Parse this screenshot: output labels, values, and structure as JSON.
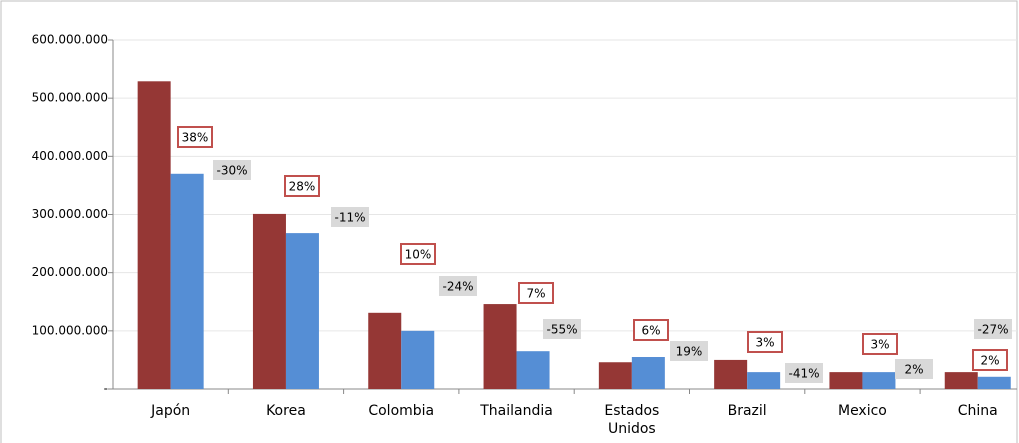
{
  "chart_data": {
    "type": "bar",
    "categories": [
      "Japón",
      "Korea",
      "Colombia",
      "Thailandia",
      "Estados Unidos",
      "Brazil",
      "Mexico",
      "China"
    ],
    "series": [
      {
        "color": "#953735",
        "values": [
          529000000,
          301000000,
          131000000,
          146000000,
          46000000,
          50000000,
          29000000,
          29000000
        ]
      },
      {
        "color": "#558ed5",
        "values": [
          370000000,
          268000000,
          100000000,
          65000000,
          55000000,
          29000000,
          29000000,
          21000000
        ]
      }
    ],
    "share_labels": [
      "38%",
      "28%",
      "10%",
      "7%",
      "6%",
      "3%",
      "3%",
      "2%"
    ],
    "change_labels": [
      "-30%",
      "-11%",
      "-24%",
      "-55%",
      "19%",
      "-41%",
      "2%",
      "-27%"
    ],
    "ylim": [
      0,
      600000000
    ],
    "yticks": [
      {
        "value": 0,
        "label": "-"
      },
      {
        "value": 100000000,
        "label": "100.000.000"
      },
      {
        "value": 200000000,
        "label": "200.000.000"
      },
      {
        "value": 300000000,
        "label": "300.000.000"
      },
      {
        "value": 400000000,
        "label": "400.000.000"
      },
      {
        "value": 500000000,
        "label": "500.000.000"
      },
      {
        "value": 600000000,
        "label": "600.000.000"
      }
    ],
    "grid": true
  }
}
